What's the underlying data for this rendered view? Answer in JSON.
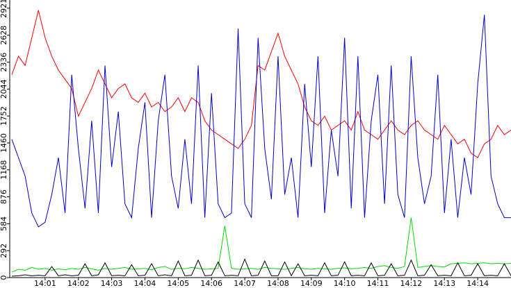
{
  "chart_data": {
    "type": "line",
    "x": [
      0,
      0.2,
      0.4,
      0.6,
      0.8,
      1.0,
      1.2,
      1.4,
      1.6,
      1.8,
      2.0,
      2.2,
      2.4,
      2.6,
      2.8,
      3.0,
      3.2,
      3.4,
      3.6,
      3.8,
      4.0,
      4.2,
      4.4,
      4.6,
      4.8,
      5.0,
      5.2,
      5.4,
      5.6,
      5.8,
      6.0,
      6.2,
      6.4,
      6.6,
      6.8,
      7.0,
      7.2,
      7.4,
      7.6,
      7.8,
      8.0,
      8.2,
      8.4,
      8.6,
      8.8,
      9.0,
      9.2,
      9.4,
      9.6,
      9.8,
      10.0,
      10.2,
      10.4,
      10.6,
      10.8,
      11.0,
      11.2,
      11.4,
      11.6,
      11.8,
      12.0,
      12.2,
      12.4,
      12.6,
      12.8,
      13.0,
      13.2,
      13.4,
      13.6,
      13.8,
      14.0,
      14.2,
      14.4,
      14.6,
      14.8,
      15.0
    ],
    "series": [
      {
        "color": "#ff0000",
        "values": [
          2200,
          2400,
          2300,
          2600,
          2900,
          2600,
          2400,
          2250,
          2150,
          2050,
          1750,
          1900,
          2050,
          2250,
          2100,
          1950,
          2050,
          2100,
          1950,
          1900,
          2000,
          1850,
          1900,
          1800,
          1850,
          1950,
          1800,
          1950,
          1900,
          1700,
          1600,
          1550,
          1500,
          1450,
          1400,
          1500,
          1650,
          2300,
          2250,
          2450,
          2650,
          2400,
          2250,
          2100,
          1850,
          1700,
          1650,
          1750,
          1600,
          1650,
          1700,
          1600,
          1800,
          1600,
          1550,
          1500,
          1600,
          1700,
          1600,
          1550,
          1650,
          1700,
          1600,
          1550,
          1500,
          1650,
          1550,
          1450,
          1500,
          1350,
          1300,
          1450,
          1500,
          1650,
          1550,
          1600
        ]
      },
      {
        "color": "#0000cc",
        "values": [
          1500,
          1300,
          1100,
          700,
          550,
          600,
          900,
          1300,
          700,
          2200,
          1400,
          750,
          1700,
          700,
          2300,
          1200,
          1800,
          800,
          650,
          1400,
          1900,
          650,
          1700,
          2200,
          1100,
          750,
          1500,
          800,
          2300,
          650,
          2000,
          800,
          650,
          700,
          2700,
          800,
          650,
          2600,
          1400,
          850,
          2400,
          900,
          1300,
          650,
          2100,
          1200,
          2400,
          700,
          1600,
          1100,
          2600,
          750,
          2400,
          650,
          1700,
          2200,
          800,
          2300,
          900,
          650,
          2400,
          1300,
          800,
          1100,
          2200,
          700,
          1500,
          650,
          1300,
          900,
          2100,
          2850,
          1100,
          800,
          650,
          650
        ]
      },
      {
        "color": "#00dd00",
        "values": [
          60,
          90,
          80,
          110,
          90,
          100,
          80,
          95,
          85,
          100,
          90,
          110,
          95,
          80,
          100,
          90,
          100,
          110,
          90,
          95,
          100,
          85,
          110,
          120,
          90,
          100,
          95,
          110,
          100,
          90,
          95,
          100,
          560,
          100,
          90,
          95,
          100,
          90,
          110,
          100,
          95,
          90,
          100,
          110,
          95,
          90,
          100,
          95,
          90,
          100,
          105,
          95,
          100,
          110,
          100,
          120,
          130,
          110,
          100,
          120,
          650,
          110,
          120,
          130,
          120,
          115,
          150,
          155,
          160,
          150,
          155,
          160,
          150,
          155,
          150,
          155
        ]
      },
      {
        "color": "#000000",
        "values": [
          15,
          20,
          30,
          20,
          25,
          20,
          120,
          20,
          30,
          20,
          25,
          150,
          20,
          30,
          160,
          20,
          25,
          20,
          140,
          20,
          25,
          150,
          20,
          30,
          20,
          180,
          20,
          25,
          190,
          20,
          25,
          170,
          20,
          25,
          20,
          200,
          20,
          25,
          180,
          20,
          20,
          170,
          20,
          150,
          20,
          25,
          20,
          160,
          20,
          25,
          170,
          20,
          25,
          20,
          160,
          20,
          25,
          150,
          20,
          25,
          190,
          20,
          25,
          140,
          20,
          25,
          20,
          160,
          20,
          25,
          150,
          20,
          25,
          20,
          150,
          20
        ]
      }
    ],
    "xlim": [
      0,
      15
    ],
    "xticks": [
      {
        "value": 1,
        "label": "14:01"
      },
      {
        "value": 2,
        "label": "14:02"
      },
      {
        "value": 3,
        "label": "14:03"
      },
      {
        "value": 4,
        "label": "14:04"
      },
      {
        "value": 5,
        "label": "14:05"
      },
      {
        "value": 6,
        "label": "14:06"
      },
      {
        "value": 7,
        "label": "14:07"
      },
      {
        "value": 8,
        "label": "14:08"
      },
      {
        "value": 9,
        "label": "14:09"
      },
      {
        "value": 10,
        "label": "14:10"
      },
      {
        "value": 11,
        "label": "14:11"
      },
      {
        "value": 12,
        "label": "14:12"
      },
      {
        "value": 13,
        "label": "14:13"
      },
      {
        "value": 14,
        "label": "14:14"
      }
    ],
    "ylim": [
      0,
      3010
    ],
    "yticks": [
      0,
      292,
      584,
      876,
      1168,
      1460,
      1752,
      2044,
      2336,
      2628,
      2921
    ]
  }
}
